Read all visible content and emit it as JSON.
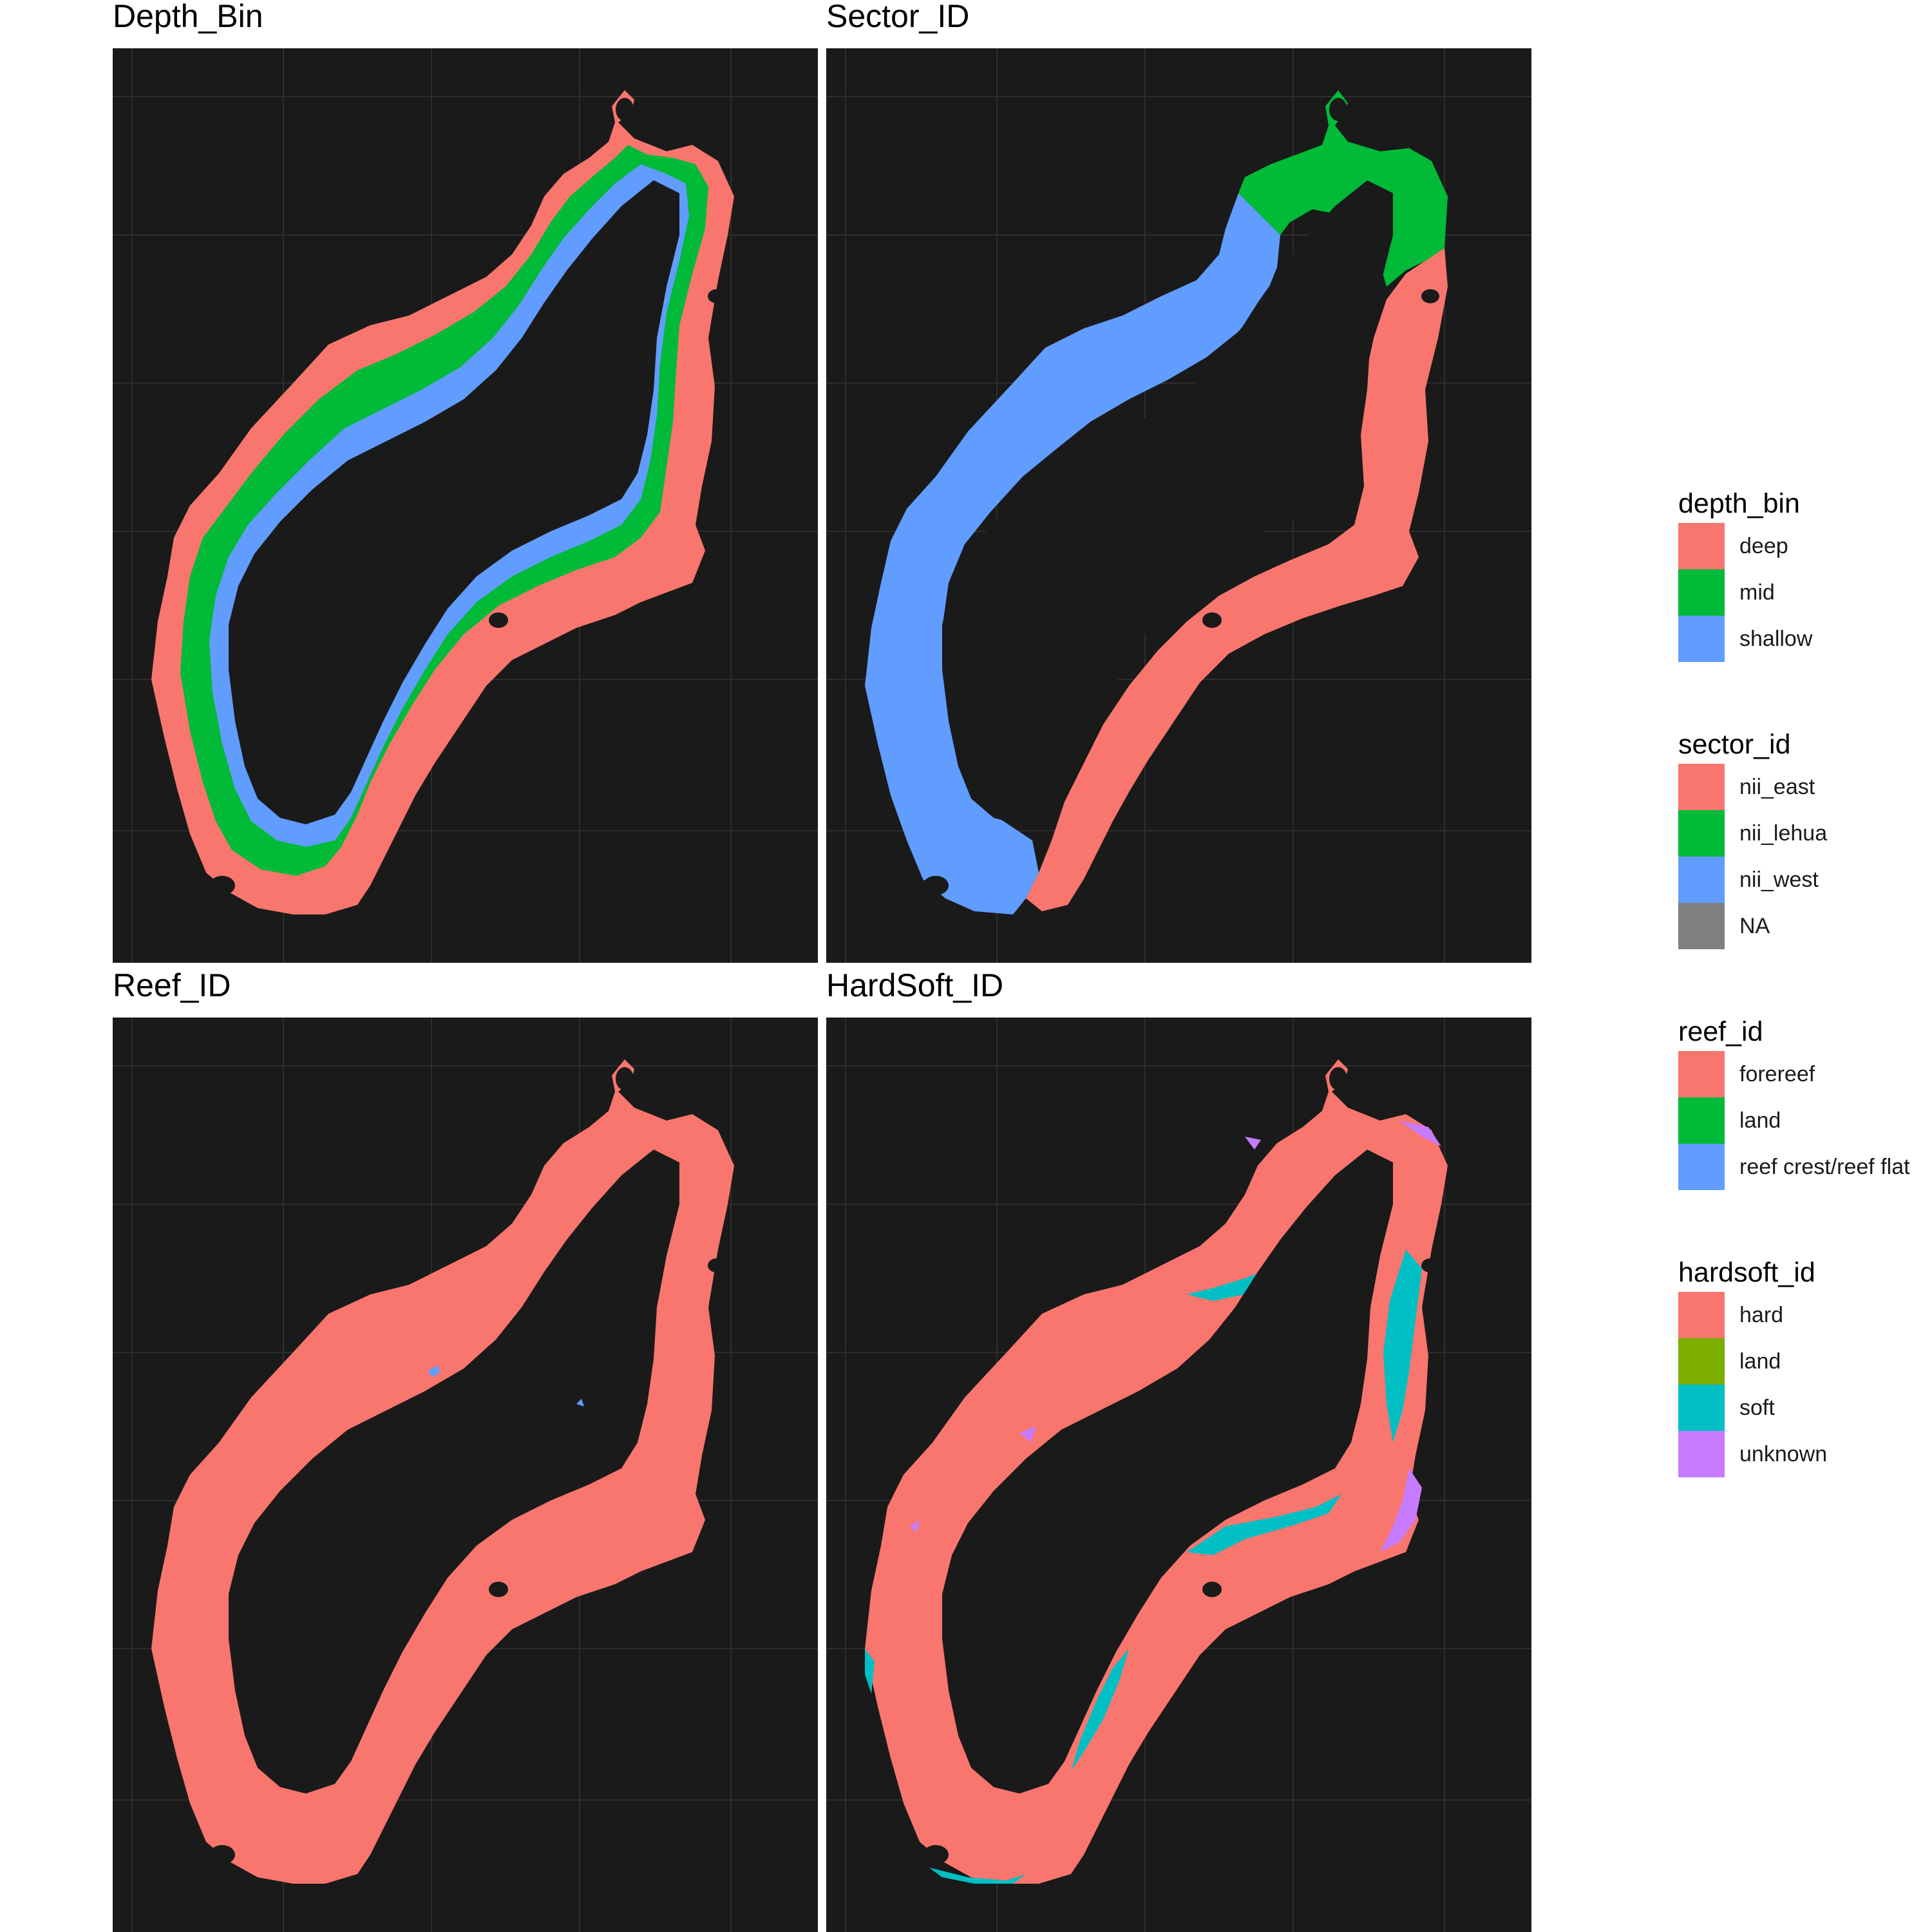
{
  "panels": [
    {
      "title": "Depth_Bin"
    },
    {
      "title": "Sector_ID"
    },
    {
      "title": "Reef_ID"
    },
    {
      "title": "HardSoft_ID"
    }
  ],
  "legends": [
    {
      "title": "depth_bin",
      "items": [
        {
          "label": "deep",
          "color": "#F8766D"
        },
        {
          "label": "mid",
          "color": "#00BA38"
        },
        {
          "label": "shallow",
          "color": "#619CFF"
        }
      ]
    },
    {
      "title": "sector_id",
      "items": [
        {
          "label": "nii_east",
          "color": "#F8766D"
        },
        {
          "label": "nii_lehua",
          "color": "#00BA38"
        },
        {
          "label": "nii_west",
          "color": "#619CFF"
        },
        {
          "label": "NA",
          "color": "#808080"
        }
      ]
    },
    {
      "title": "reef_id",
      "items": [
        {
          "label": "forereef",
          "color": "#F8766D"
        },
        {
          "label": "land",
          "color": "#00BA38"
        },
        {
          "label": "reef crest/reef flat",
          "color": "#619CFF"
        }
      ]
    },
    {
      "title": "hardsoft_id",
      "items": [
        {
          "label": "hard",
          "color": "#F8766D"
        },
        {
          "label": "land",
          "color": "#7CAE00"
        },
        {
          "label": "soft",
          "color": "#00BFC4"
        },
        {
          "label": "unknown",
          "color": "#C77CFF"
        }
      ]
    }
  ],
  "colors": {
    "panel_background": "#1a1a1a",
    "grid": "#2e2e2e",
    "island": "#1a1a1a"
  }
}
